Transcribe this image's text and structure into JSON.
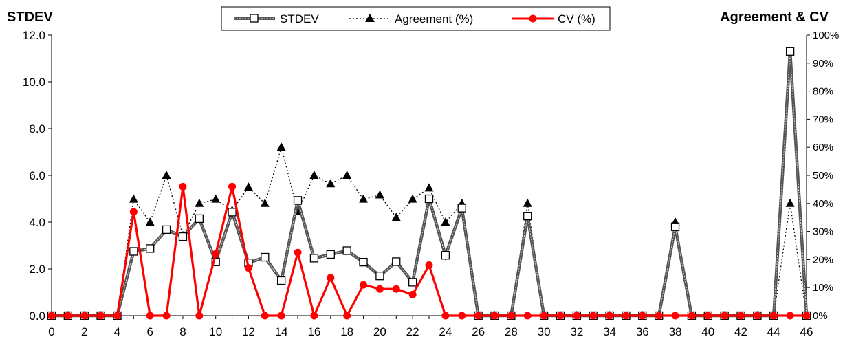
{
  "chart_data": {
    "type": "line",
    "left_axis_title": "STDEV",
    "right_axis_title": "Agreement & CV",
    "x_ticks": [
      "0",
      "2",
      "4",
      "6",
      "8",
      "10",
      "12",
      "14",
      "16",
      "18",
      "20",
      "22",
      "24",
      "26",
      "28",
      "30",
      "32",
      "34",
      "36",
      "38",
      "40",
      "42",
      "44",
      "46"
    ],
    "y_left_ticks": [
      "0.0",
      "2.0",
      "4.0",
      "6.0",
      "8.0",
      "10.0",
      "12.0"
    ],
    "y_right_ticks": [
      "0%",
      "10%",
      "20%",
      "30%",
      "40%",
      "50%",
      "60%",
      "70%",
      "80%",
      "90%",
      "100%"
    ],
    "ylim_left": [
      0,
      12
    ],
    "ylim_right": [
      0,
      100
    ],
    "xlim": [
      0,
      46
    ],
    "legend_position": "top-center",
    "x": [
      0,
      1,
      2,
      3,
      4,
      5,
      6,
      7,
      8,
      9,
      10,
      11,
      12,
      13,
      14,
      15,
      16,
      17,
      18,
      19,
      20,
      21,
      22,
      23,
      24,
      25,
      26,
      27,
      28,
      29,
      30,
      31,
      32,
      33,
      34,
      35,
      36,
      37,
      38,
      39,
      40,
      41,
      42,
      43,
      44,
      45,
      46
    ],
    "series": [
      {
        "name": "STDEV",
        "axis": "left",
        "color": "#555555",
        "marker": "open-square",
        "values": [
          0,
          0,
          0,
          0,
          0,
          2.75,
          2.87,
          3.68,
          3.38,
          4.15,
          2.3,
          4.43,
          2.26,
          2.5,
          1.5,
          4.93,
          2.46,
          2.62,
          2.78,
          2.29,
          1.7,
          2.31,
          1.43,
          5.0,
          2.58,
          4.6,
          0,
          0,
          0,
          4.26,
          0,
          0,
          0,
          0,
          0,
          0,
          0,
          0,
          3.8,
          0,
          0,
          0,
          0,
          0,
          0,
          11.3,
          0
        ]
      },
      {
        "name": "Agreement (%)",
        "axis": "right",
        "color": "#000000",
        "marker": "filled-triangle",
        "values": [
          0,
          0,
          0,
          0,
          0,
          41.5,
          33.3,
          50,
          28.5,
          40,
          41.5,
          37.5,
          45.8,
          40,
          60,
          37,
          50,
          47,
          50,
          41.5,
          43,
          35,
          41.5,
          45.5,
          33.3,
          40,
          0,
          0,
          0,
          40,
          0,
          0,
          0,
          0,
          0,
          0,
          0,
          0,
          33.3,
          0,
          0,
          0,
          0,
          0,
          0,
          40,
          0
        ]
      },
      {
        "name": "CV (%)",
        "axis": "right",
        "color": "#ff0000",
        "marker": "filled-circle",
        "values": [
          0,
          0,
          0,
          0,
          0,
          37,
          0,
          0,
          46,
          0,
          22,
          46,
          17,
          0,
          0,
          22.5,
          0,
          13.5,
          0,
          11,
          9.5,
          9.5,
          7.5,
          18,
          0,
          0,
          0,
          0,
          0,
          0,
          0,
          0,
          0,
          0,
          0,
          0,
          0,
          0,
          0,
          0,
          0,
          0,
          0,
          0,
          0,
          0,
          0
        ]
      }
    ]
  }
}
